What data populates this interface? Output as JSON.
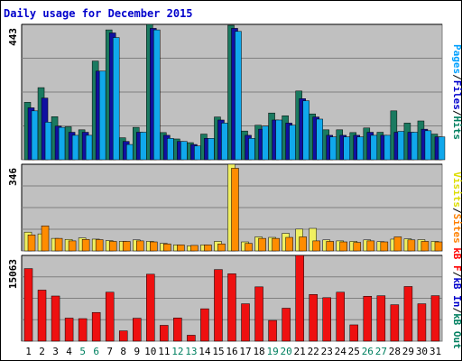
{
  "chart_data": [
    {
      "type": "bar",
      "panel": "pages-files-hits",
      "title": "Daily usage for December 2015",
      "ymax_label": "443",
      "ylim": [
        0,
        443
      ],
      "categories": [
        "1",
        "2",
        "3",
        "4",
        "5",
        "6",
        "7",
        "8",
        "9",
        "10",
        "11",
        "12",
        "13",
        "14",
        "15",
        "16",
        "17",
        "18",
        "19",
        "20",
        "21",
        "22",
        "23",
        "24",
        "25",
        "26",
        "27",
        "28",
        "29",
        "30",
        "31"
      ],
      "weekend_days": [
        "5",
        "6",
        "12",
        "13",
        "19",
        "20",
        "26",
        "27"
      ],
      "axis_label_parts": [
        {
          "text": "Pages",
          "color": "#00a0ff"
        },
        {
          "text": "/",
          "color": "#000000"
        },
        {
          "text": "Files",
          "color": "#0000cc"
        },
        {
          "text": "/",
          "color": "#000000"
        },
        {
          "text": "Hits",
          "color": "#008060"
        }
      ],
      "series": [
        {
          "name": "Hits",
          "color": "#1a7a60",
          "values": [
            188,
            236,
            141,
            108,
            98,
            323,
            425,
            72,
            106,
            443,
            89,
            68,
            56,
            84,
            140,
            440,
            94,
            113,
            153,
            144,
            225,
            150,
            98,
            98,
            89,
            104,
            90,
            160,
            120,
            127,
            84
          ]
        },
        {
          "name": "Files",
          "color": "#1010a0",
          "values": [
            170,
            202,
            110,
            90,
            90,
            290,
            415,
            60,
            90,
            430,
            80,
            60,
            50,
            70,
            130,
            430,
            80,
            100,
            130,
            120,
            200,
            140,
            80,
            80,
            80,
            90,
            80,
            90,
            90,
            100,
            75
          ]
        },
        {
          "name": "Pages",
          "color": "#10a8ec",
          "values": [
            160,
            123,
            106,
            80,
            80,
            290,
            400,
            50,
            90,
            425,
            70,
            60,
            45,
            70,
            120,
            420,
            70,
            110,
            130,
            113,
            193,
            133,
            75,
            75,
            75,
            80,
            80,
            93,
            90,
            95,
            75
          ]
        }
      ]
    },
    {
      "type": "bar",
      "panel": "visits-sites",
      "ymax_label": "346",
      "ylim": [
        0,
        346
      ],
      "axis_label_parts": [
        {
          "text": "Visits",
          "color": "#dddd00"
        },
        {
          "text": "/",
          "color": "#000000"
        },
        {
          "text": "Sites",
          "color": "#ff8000"
        }
      ],
      "series": [
        {
          "name": "Visits",
          "color": "#f0f060",
          "values": [
            75,
            68,
            50,
            46,
            52,
            47,
            41,
            38,
            44,
            38,
            30,
            24,
            20,
            24,
            38,
            346,
            36,
            56,
            54,
            70,
            87,
            90,
            44,
            40,
            38,
            44,
            37,
            47,
            48,
            45,
            38
          ]
        },
        {
          "name": "Sites",
          "color": "#ff8c00",
          "values": [
            64,
            100,
            50,
            40,
            46,
            45,
            38,
            38,
            40,
            36,
            28,
            24,
            22,
            24,
            28,
            330,
            30,
            50,
            50,
            54,
            56,
            40,
            38,
            36,
            34,
            40,
            36,
            56,
            44,
            38,
            36
          ]
        }
      ]
    },
    {
      "type": "bar",
      "panel": "kbytes",
      "ymax_label": "15063",
      "ylim": [
        0,
        15063
      ],
      "axis_label_parts": [
        {
          "text": "kB F",
          "color": "#ff0000"
        },
        {
          "text": "/",
          "color": "#000000"
        },
        {
          "text": "kB In",
          "color": "#0000cc"
        },
        {
          "text": "/",
          "color": "#000000"
        },
        {
          "text": "kB Out",
          "color": "#008060"
        }
      ],
      "series": [
        {
          "name": "kB F",
          "color": "#ee1010",
          "values": [
            12750,
            8970,
            7930,
            4050,
            3960,
            5040,
            8600,
            1810,
            4030,
            11760,
            2780,
            4080,
            1040,
            5690,
            12580,
            11840,
            6570,
            9540,
            3640,
            5790,
            15063,
            8200,
            7640,
            8600,
            2860,
            7890,
            7980,
            6400,
            9600,
            6570,
            7990
          ]
        }
      ]
    }
  ]
}
